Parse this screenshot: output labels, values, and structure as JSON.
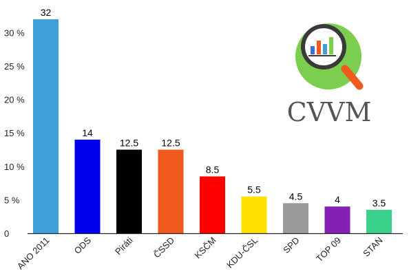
{
  "chart_data": {
    "type": "bar",
    "categories": [
      "ANO 2011",
      "ODS",
      "Piráti",
      "ČSSD",
      "KSČM",
      "KDU-ČSL",
      "SPD",
      "TOP 09",
      "STAN"
    ],
    "values": [
      32,
      14,
      12.5,
      12.5,
      8.5,
      5.5,
      4.5,
      4,
      3.5
    ],
    "data_labels": [
      "32",
      "14",
      "12.5",
      "12.5",
      "8.5",
      "5.5",
      "4.5",
      "4",
      "3.5"
    ],
    "colors": [
      "#3f9fd8",
      "#0000ee",
      "#000000",
      "#f05a1c",
      "#ff0000",
      "#ffe000",
      "#9a9a9a",
      "#8420b4",
      "#3ad28b"
    ],
    "y_ticks": [
      0,
      5,
      10,
      15,
      20,
      25,
      30
    ],
    "y_tick_labels": [
      "0",
      "5 %",
      "10 %",
      "15 %",
      "20 %",
      "25 %",
      "30 %"
    ],
    "ylim": [
      0,
      32
    ],
    "title": "",
    "xlabel": "",
    "ylabel": "",
    "grid": false,
    "legend": "none"
  },
  "logo": {
    "text": "CVVM",
    "icon": "magnifier-bar-chart-icon",
    "circle_color": "#7ccf4e",
    "handle_color": "#f05a1c",
    "text_color": "#555555"
  }
}
